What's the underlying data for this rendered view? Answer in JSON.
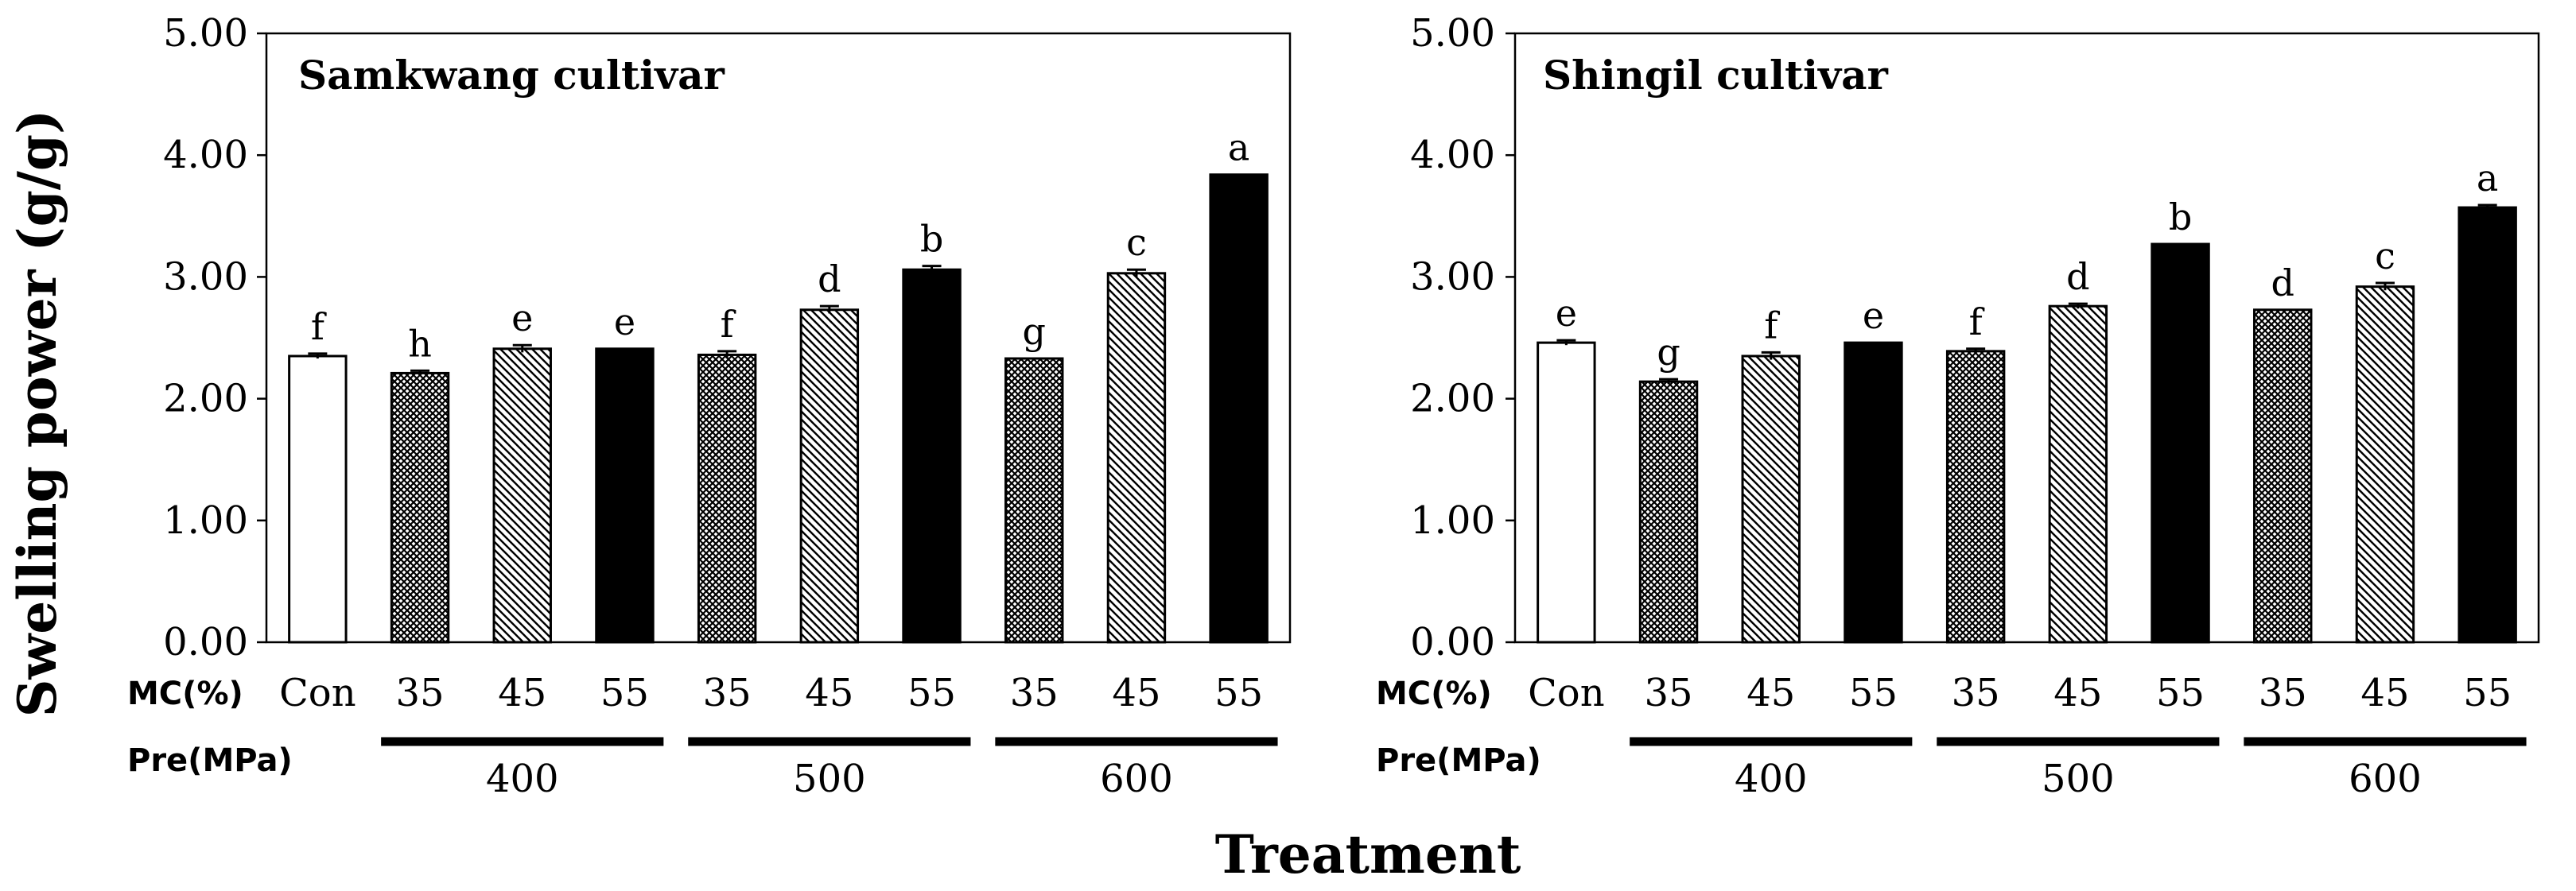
{
  "figure": {
    "ylabel": "Swelling power (g/g)",
    "xlabel": "Treatment",
    "mc_label": "MC(%)",
    "pre_label": "Pre(MPa)"
  },
  "chart_data": [
    {
      "type": "bar",
      "title": "Samkwang cultivar",
      "ylabel": "Swelling power (g/g)",
      "xlabel": "Treatment",
      "ylim": [
        0,
        5
      ],
      "yticks": [
        "0.00",
        "1.00",
        "2.00",
        "3.00",
        "4.00",
        "5.00"
      ],
      "categories": [
        "Con",
        "35",
        "45",
        "55",
        "35",
        "45",
        "55",
        "35",
        "45",
        "55"
      ],
      "pressure_groups": [
        {
          "label": "400",
          "members": [
            1,
            2,
            3
          ]
        },
        {
          "label": "500",
          "members": [
            4,
            5,
            6
          ]
        },
        {
          "label": "600",
          "members": [
            7,
            8,
            9
          ]
        }
      ],
      "values": [
        2.35,
        2.21,
        2.41,
        2.41,
        2.36,
        2.73,
        3.06,
        2.33,
        3.03,
        3.84
      ],
      "errors": [
        0.02,
        0.02,
        0.03,
        0.0,
        0.03,
        0.03,
        0.03,
        0.0,
        0.03,
        0.0
      ],
      "letters": [
        "f",
        "h",
        "e",
        "e",
        "f",
        "d",
        "b",
        "g",
        "c",
        "a"
      ],
      "fills": [
        "white",
        "cross",
        "diag",
        "solid",
        "cross",
        "diag",
        "solid",
        "cross",
        "diag",
        "solid"
      ],
      "grid": false
    },
    {
      "type": "bar",
      "title": "Shingil cultivar",
      "ylabel": "Swelling power (g/g)",
      "xlabel": "Treatment",
      "ylim": [
        0,
        5
      ],
      "yticks": [
        "0.00",
        "1.00",
        "2.00",
        "3.00",
        "4.00",
        "5.00"
      ],
      "categories": [
        "Con",
        "35",
        "45",
        "55",
        "35",
        "45",
        "55",
        "35",
        "45",
        "55"
      ],
      "pressure_groups": [
        {
          "label": "400",
          "members": [
            1,
            2,
            3
          ]
        },
        {
          "label": "500",
          "members": [
            4,
            5,
            6
          ]
        },
        {
          "label": "600",
          "members": [
            7,
            8,
            9
          ]
        }
      ],
      "values": [
        2.46,
        2.14,
        2.35,
        2.46,
        2.39,
        2.76,
        3.27,
        2.73,
        2.92,
        3.57
      ],
      "errors": [
        0.02,
        0.02,
        0.03,
        0.0,
        0.02,
        0.02,
        0.0,
        0.0,
        0.03,
        0.02
      ],
      "letters": [
        "e",
        "g",
        "f",
        "e",
        "f",
        "d",
        "b",
        "d",
        "c",
        "a"
      ],
      "fills": [
        "white",
        "cross",
        "diag",
        "solid",
        "cross",
        "diag",
        "solid",
        "cross",
        "diag",
        "solid"
      ],
      "grid": false
    }
  ]
}
